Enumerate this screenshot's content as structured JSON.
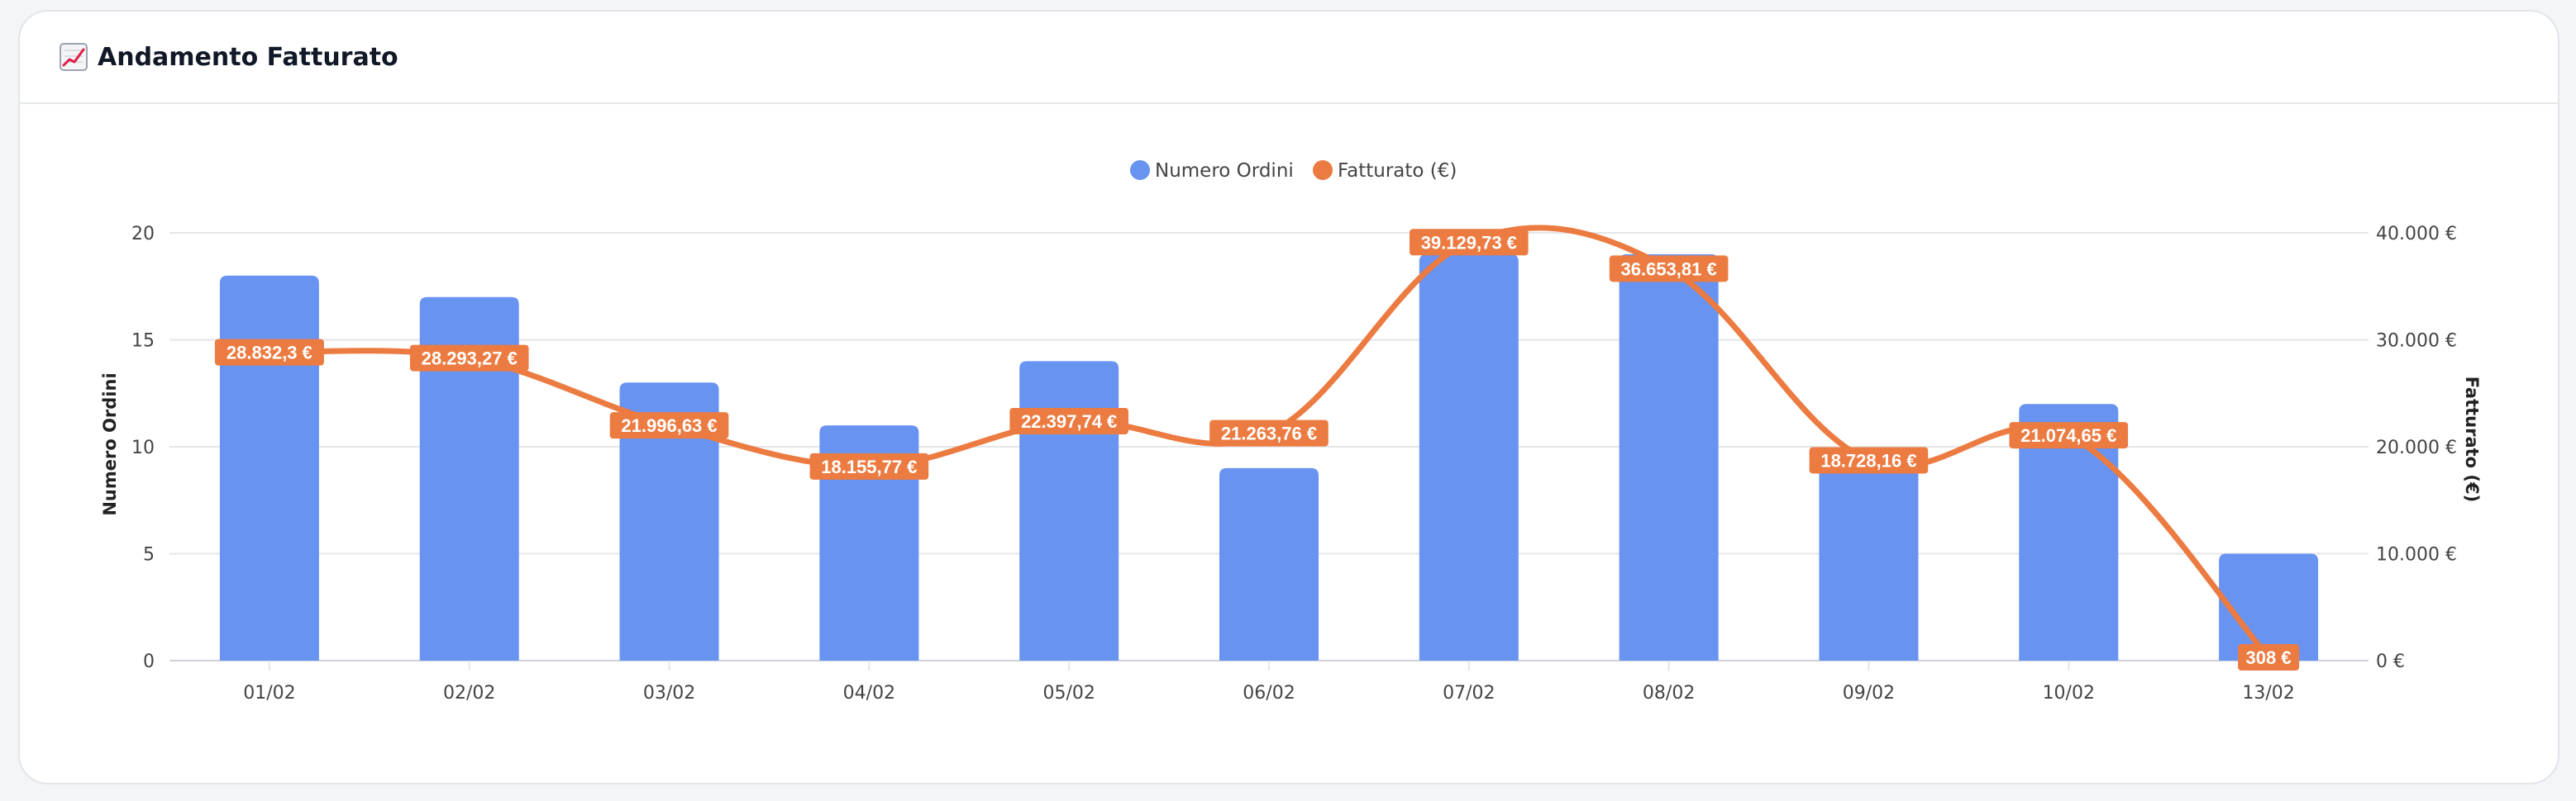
{
  "card": {
    "title": "Andamento Fatturato",
    "title_icon": "chart-increasing-icon"
  },
  "colors": {
    "bar": "#6893f0",
    "line": "#ec7b41",
    "label_bg": "#ec7b41",
    "grid": "#e4e6ea"
  },
  "chart_data": {
    "type": "bar",
    "categories": [
      "01/02",
      "02/02",
      "03/02",
      "04/02",
      "05/02",
      "06/02",
      "07/02",
      "08/02",
      "09/02",
      "10/02",
      "13/02"
    ],
    "series": [
      {
        "name": "Numero Ordini",
        "type": "bar",
        "axis": "left",
        "values": [
          18,
          17,
          13,
          11,
          14,
          9,
          19,
          19,
          9,
          12,
          5
        ]
      },
      {
        "name": "Fatturato (€)",
        "type": "line",
        "axis": "right",
        "values": [
          28832.3,
          28293.27,
          21996.63,
          18155.77,
          22397.74,
          21263.76,
          39129.73,
          36653.81,
          18728.16,
          21074.65,
          308
        ],
        "labels": [
          "28.832,3 €",
          "28.293,27 €",
          "21.996,63 €",
          "18.155,77 €",
          "22.397,74 €",
          "21.263,76 €",
          "39.129,73 €",
          "36.653,81 €",
          "18.728,16 €",
          "21.074,65 €",
          "308 €"
        ]
      }
    ],
    "y_left": {
      "label": "Numero Ordini",
      "range": [
        0,
        20
      ],
      "ticks": [
        "0",
        "5",
        "10",
        "15",
        "20"
      ]
    },
    "y_right": {
      "label": "Fatturato (€)",
      "range": [
        0,
        40000
      ],
      "ticks": [
        "0 €",
        "10.000 €",
        "20.000 €",
        "30.000 €",
        "40.000 €"
      ]
    },
    "legend_position": "top-center",
    "grid": true
  }
}
